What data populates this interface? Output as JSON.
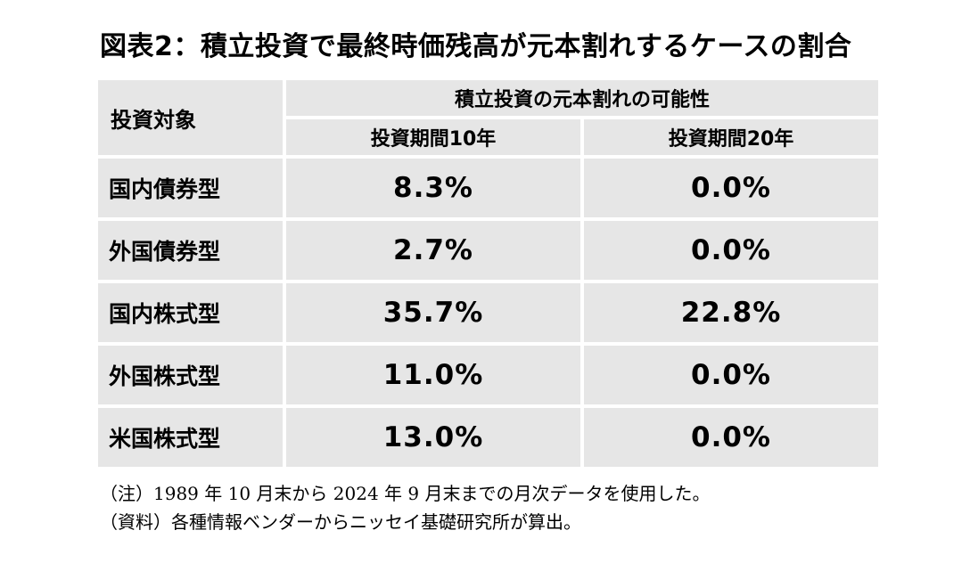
{
  "title": "図表2：積立投資で最終時価残高が元本割れするケースの割合",
  "table": {
    "header_label": "投資対象",
    "header_group": "積立投資の元本割れの可能性",
    "periods": [
      "投資期間10年",
      "投資期間20年"
    ],
    "rows": [
      {
        "label": "国内債券型",
        "v10": "8.3%",
        "v20": "0.0%"
      },
      {
        "label": "外国債券型",
        "v10": "2.7%",
        "v20": "0.0%"
      },
      {
        "label": "国内株式型",
        "v10": "35.7%",
        "v20": "22.8%"
      },
      {
        "label": "外国株式型",
        "v10": "11.0%",
        "v20": "0.0%"
      },
      {
        "label": "米国株式型",
        "v10": "13.0%",
        "v20": "0.0%"
      }
    ]
  },
  "notes": [
    "（注）1989 年 10 月末から 2024 年 9 月末までの月次データを使用した。",
    "（資料）各種情報ベンダーからニッセイ基礎研究所が算出。"
  ]
}
